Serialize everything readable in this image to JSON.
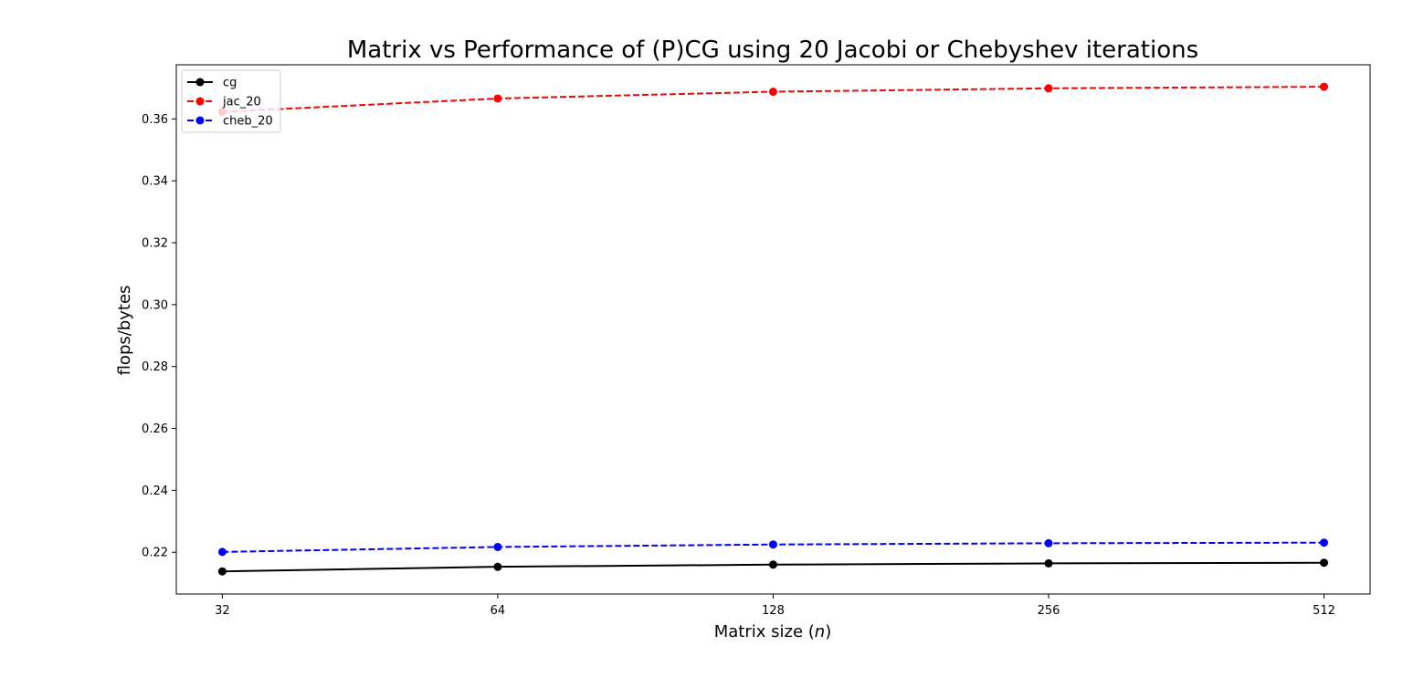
{
  "chart_data": {
    "type": "line",
    "title": "Matrix vs Performance of (P)CG using 20 Jacobi or Chebyshev iterations",
    "xlabel": "Matrix size (",
    "xlabel_var": "n",
    "xlabel_end": ")",
    "ylabel": "flops/bytes",
    "x": [
      32,
      64,
      128,
      256,
      512
    ],
    "x_tick_labels": [
      "32",
      "64",
      "128",
      "256",
      "512"
    ],
    "x_scale": "log2",
    "xlim": [
      28.5,
      575
    ],
    "ylim": [
      0.2065,
      0.3775
    ],
    "y_ticks": [
      0.22,
      0.24,
      0.26,
      0.28,
      0.3,
      0.32,
      0.34,
      0.36
    ],
    "y_tick_labels": [
      "0.22",
      "0.24",
      "0.26",
      "0.28",
      "0.30",
      "0.32",
      "0.34",
      "0.36"
    ],
    "grid": false,
    "legend_position": "top-left",
    "series": [
      {
        "name": "cg",
        "color": "#000000",
        "dash": "solid",
        "values": [
          0.2138,
          0.2153,
          0.216,
          0.2164,
          0.2166
        ]
      },
      {
        "name": "jac_20",
        "color": "#ff0000",
        "dash": "dashed",
        "values": [
          0.3623,
          0.3666,
          0.3688,
          0.3699,
          0.3704
        ]
      },
      {
        "name": "cheb_20",
        "color": "#0000ff",
        "dash": "dashed",
        "values": [
          0.2201,
          0.2217,
          0.2225,
          0.2229,
          0.2231
        ]
      }
    ]
  }
}
